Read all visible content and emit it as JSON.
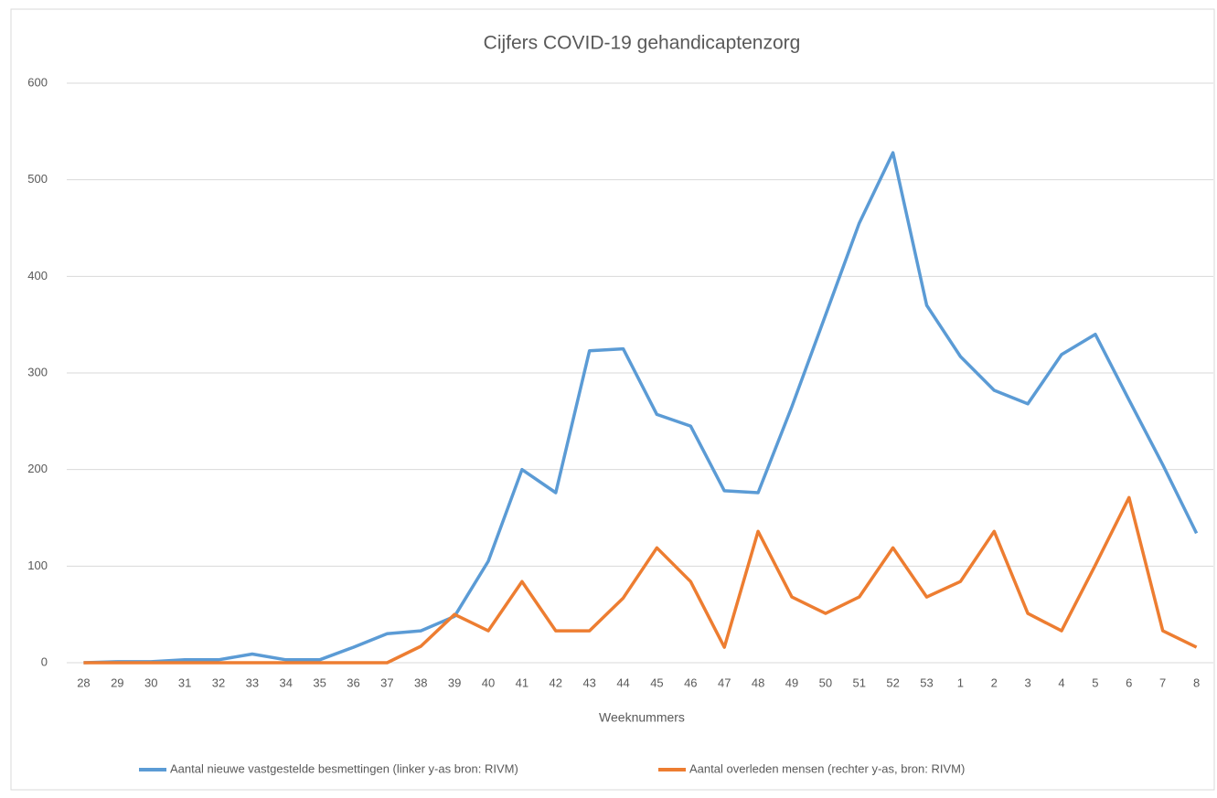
{
  "chart_data": {
    "type": "line",
    "title": "Cijfers COVID-19 gehandicaptenzorg",
    "x_label": "Weeknummers",
    "categories": [
      "28",
      "29",
      "30",
      "31",
      "32",
      "33",
      "34",
      "35",
      "36",
      "37",
      "38",
      "39",
      "40",
      "41",
      "42",
      "43",
      "44",
      "45",
      "46",
      "47",
      "48",
      "49",
      "50",
      "51",
      "52",
      "53",
      "1",
      "2",
      "3",
      "4",
      "5",
      "6",
      "7",
      "8"
    ],
    "series": [
      {
        "name": "Aantal nieuwe vastgestelde besmettingen  (linker y-as bron: RIVM)",
        "color": "#5b9bd5",
        "values": [
          0,
          1,
          1,
          3,
          3,
          9,
          3,
          3,
          16,
          30,
          33,
          48,
          105,
          200,
          176,
          323,
          325,
          257,
          245,
          178,
          176,
          265,
          360,
          455,
          528,
          370,
          317,
          282,
          268,
          319,
          340,
          272,
          205,
          134
        ]
      },
      {
        "name": "Aantal overleden mensen  (rechter y-as, bron: RIVM)",
        "color": "#ed7d31",
        "values": [
          0,
          0,
          0,
          0,
          0,
          0,
          0,
          0,
          0,
          0,
          17,
          50,
          33,
          84,
          33,
          33,
          67,
          119,
          84,
          16,
          136,
          68,
          51,
          68,
          119,
          68,
          84,
          136,
          51,
          33,
          101,
          171,
          33,
          16
        ]
      }
    ],
    "ylim": [
      0,
      600
    ],
    "yticks": [
      0,
      100,
      200,
      300,
      400,
      500,
      600
    ],
    "grid": true,
    "legend": "bottom"
  }
}
